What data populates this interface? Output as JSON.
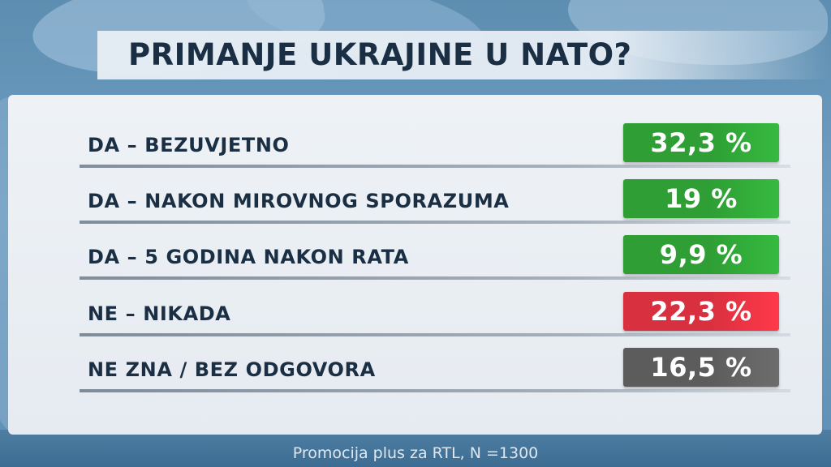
{
  "chart_data": {
    "type": "table",
    "title": "PRIMANJE UKRAJINE U NATO?",
    "rows": [
      {
        "label": "DA – BEZUVJETNO",
        "value": 32.3,
        "display": "32,3 %",
        "color": "#2e9e35"
      },
      {
        "label": "DA – NAKON MIROVNOG SPORAZUMA",
        "value": 19,
        "display": "19 %",
        "color": "#2e9e35"
      },
      {
        "label": "DA – 5 GODINA NAKON RATA",
        "value": 9.9,
        "display": "9,9 %",
        "color": "#2e9e35"
      },
      {
        "label": "NE – NIKADA",
        "value": 22.3,
        "display": "22,3 %",
        "color": "#d8303f"
      },
      {
        "label": "NE ZNA / BEZ ODGOVORA",
        "value": 16.5,
        "display": "16,5 %",
        "color": "#5c5c5c"
      }
    ]
  },
  "footer": "Promocija plus za RTL,  N =1300"
}
